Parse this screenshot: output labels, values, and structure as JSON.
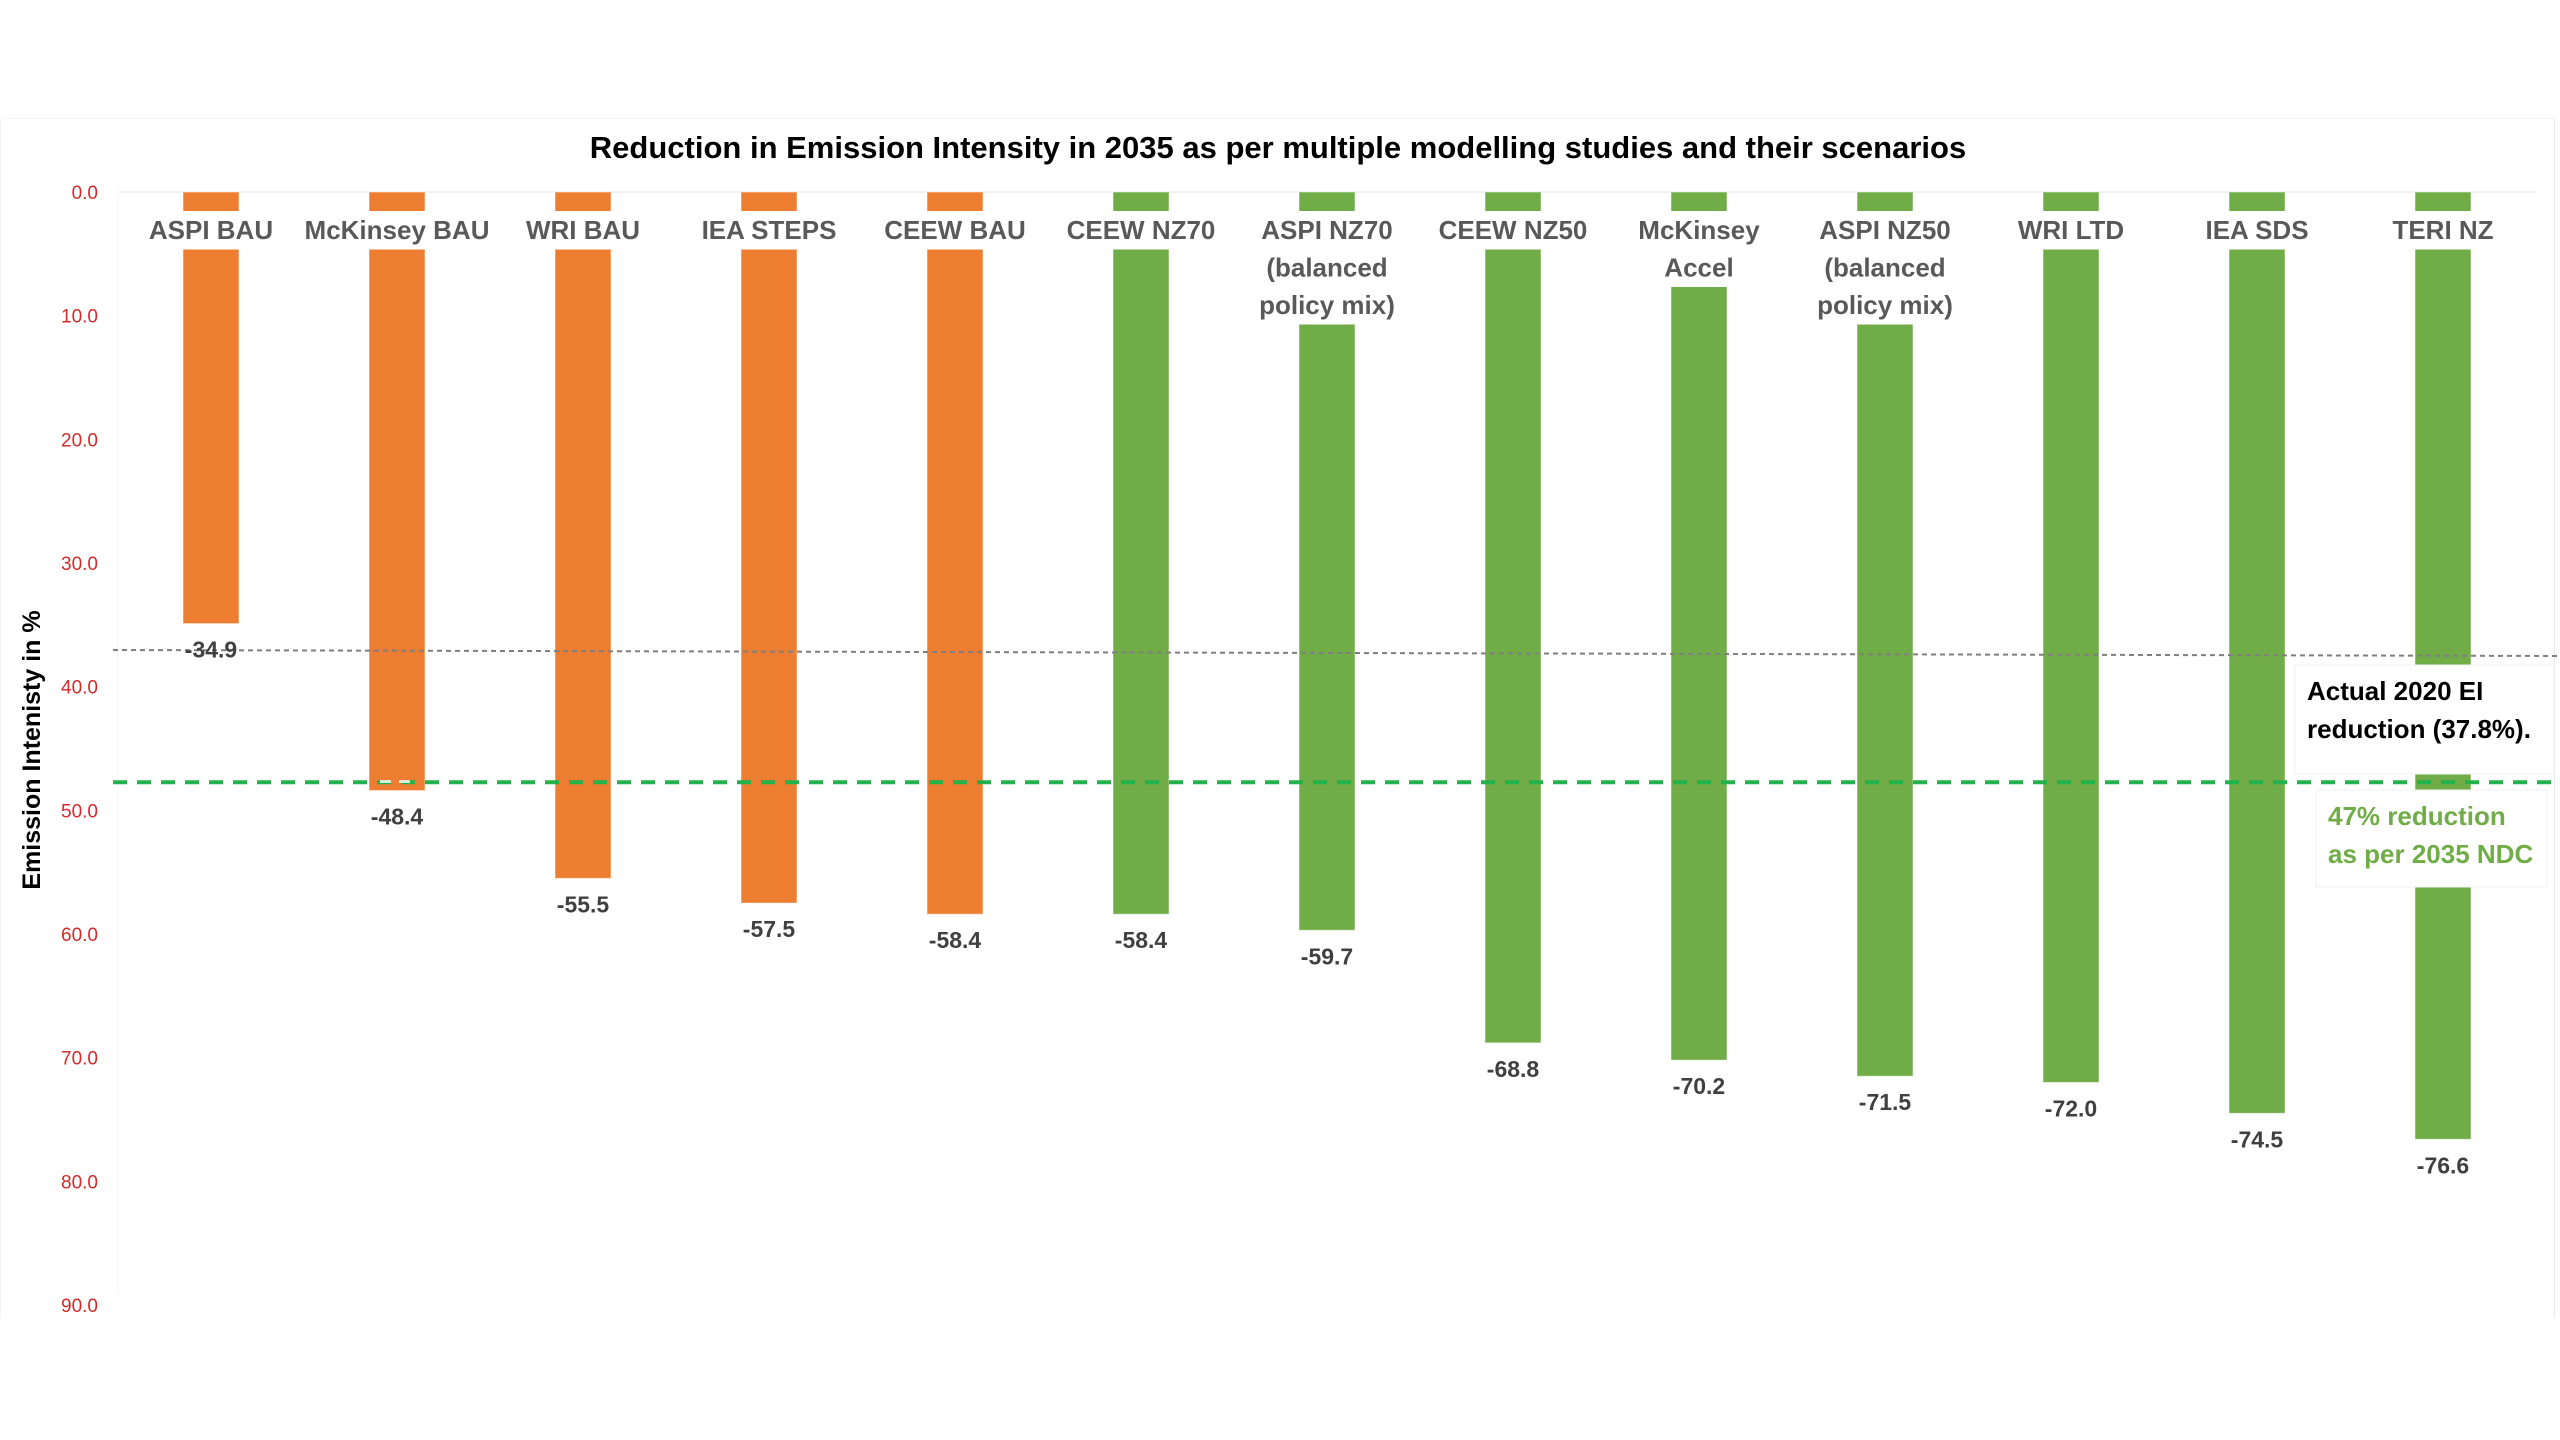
{
  "chart_data": {
    "type": "bar",
    "title": "Reduction in Emission Intensity in 2035 as per multiple modelling studies and their scenarios",
    "xlabel": "",
    "ylabel": "Emission Intenisty in  %",
    "ylim": [
      0,
      90
    ],
    "y_inverted": true,
    "yticks": [
      "0.0",
      "10.0",
      "20.0",
      "30.0",
      "40.0",
      "50.0",
      "60.0",
      "70.0",
      "80.0",
      "90.0"
    ],
    "grid": false,
    "colors": {
      "bau": "#ed7d31",
      "net_zero": "#70ad47",
      "ndc_line": "#22b24c",
      "actual_line": "#7f7f7f",
      "tick_label": "#d42a2a"
    },
    "categories": [
      {
        "lines": [
          "ASPI BAU"
        ],
        "group": "bau"
      },
      {
        "lines": [
          "McKinsey BAU"
        ],
        "group": "bau"
      },
      {
        "lines": [
          "WRI BAU"
        ],
        "group": "bau"
      },
      {
        "lines": [
          "IEA STEPS"
        ],
        "group": "bau"
      },
      {
        "lines": [
          "CEEW BAU"
        ],
        "group": "bau"
      },
      {
        "lines": [
          "CEEW NZ70"
        ],
        "group": "net_zero"
      },
      {
        "lines": [
          "ASPI NZ70",
          "(balanced",
          "policy mix)"
        ],
        "group": "net_zero"
      },
      {
        "lines": [
          "CEEW NZ50"
        ],
        "group": "net_zero"
      },
      {
        "lines": [
          "McKinsey",
          "Accel"
        ],
        "group": "net_zero"
      },
      {
        "lines": [
          "ASPI NZ50",
          "(balanced",
          "policy mix)"
        ],
        "group": "net_zero"
      },
      {
        "lines": [
          "WRI LTD"
        ],
        "group": "net_zero"
      },
      {
        "lines": [
          "IEA SDS"
        ],
        "group": "net_zero"
      },
      {
        "lines": [
          "TERI NZ"
        ],
        "group": "net_zero"
      }
    ],
    "values": [
      -34.9,
      -48.4,
      -55.5,
      -57.5,
      -58.4,
      -58.4,
      -59.7,
      -68.8,
      -70.2,
      -71.5,
      -72.0,
      -74.5,
      -76.6
    ],
    "value_labels": [
      "-34.9",
      "-48.4",
      "-55.5",
      "-57.5",
      "-58.4",
      "-58.4",
      "-59.7",
      "-68.8",
      "-70.2",
      "-71.5",
      "-72.0",
      "-74.5",
      "-76.6"
    ],
    "reference_lines": [
      {
        "name": "actual-2020",
        "value": 37.8,
        "style": "dotted",
        "label_lines": [
          "Actual 2020 EI",
          "reduction (37.8%)."
        ]
      },
      {
        "name": "ndc-2035",
        "value": 47,
        "style": "dashed",
        "label_lines": [
          "47% reduction",
          "as per 2035 NDC"
        ]
      }
    ]
  }
}
